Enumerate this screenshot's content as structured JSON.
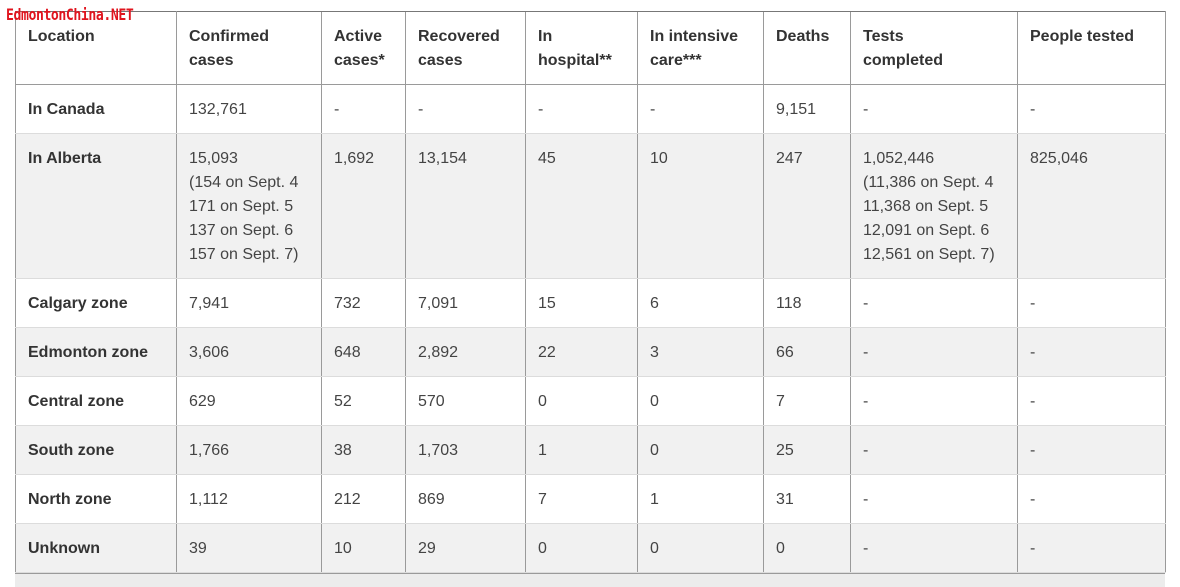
{
  "watermark": "EdmontonChina.NET",
  "table": {
    "headers": [
      [
        "Location"
      ],
      [
        "Confirmed",
        "cases"
      ],
      [
        "Active",
        "cases*"
      ],
      [
        "Recovered",
        "cases"
      ],
      [
        "In",
        "hospital**"
      ],
      [
        "In intensive",
        "care***"
      ],
      [
        "Deaths"
      ],
      [
        "Tests",
        "completed"
      ],
      [
        "People tested"
      ]
    ],
    "rows": [
      {
        "location": "In Canada",
        "confirmed": [
          "132,761"
        ],
        "active": "-",
        "recovered": "-",
        "hospital": "-",
        "icu": "-",
        "deaths": "9,151",
        "tests": [
          "-"
        ],
        "people": "-"
      },
      {
        "location": "In Alberta",
        "confirmed": [
          "15,093",
          "(154 on Sept. 4",
          "171 on Sept. 5",
          "137 on Sept. 6",
          "157 on Sept. 7)"
        ],
        "active": "1,692",
        "recovered": "13,154",
        "hospital": "45",
        "icu": "10",
        "deaths": "247",
        "tests": [
          "1,052,446",
          "(11,386 on Sept. 4",
          "11,368 on Sept. 5",
          "12,091 on Sept. 6",
          "12,561 on Sept. 7)"
        ],
        "people": "825,046"
      },
      {
        "location": "Calgary zone",
        "confirmed": [
          "7,941"
        ],
        "active": "732",
        "recovered": "7,091",
        "hospital": "15",
        "icu": "6",
        "deaths": "118",
        "tests": [
          "-"
        ],
        "people": "-"
      },
      {
        "location": "Edmonton zone",
        "confirmed": [
          "3,606"
        ],
        "active": "648",
        "recovered": "2,892",
        "hospital": "22",
        "icu": "3",
        "deaths": "66",
        "tests": [
          "-"
        ],
        "people": "-"
      },
      {
        "location": "Central zone",
        "confirmed": [
          "629"
        ],
        "active": "52",
        "recovered": "570",
        "hospital": "0",
        "icu": "0",
        "deaths": "7",
        "tests": [
          "-"
        ],
        "people": "-"
      },
      {
        "location": "South zone",
        "confirmed": [
          "1,766"
        ],
        "active": "38",
        "recovered": "1,703",
        "hospital": "1",
        "icu": "0",
        "deaths": "25",
        "tests": [
          "-"
        ],
        "people": "-"
      },
      {
        "location": "North zone",
        "confirmed": [
          "1,112"
        ],
        "active": "212",
        "recovered": "869",
        "hospital": "7",
        "icu": "1",
        "deaths": "31",
        "tests": [
          "-"
        ],
        "people": "-"
      },
      {
        "location": "Unknown",
        "confirmed": [
          "39"
        ],
        "active": "10",
        "recovered": "29",
        "hospital": "0",
        "icu": "0",
        "deaths": "0",
        "tests": [
          "-"
        ],
        "people": "-"
      }
    ]
  }
}
